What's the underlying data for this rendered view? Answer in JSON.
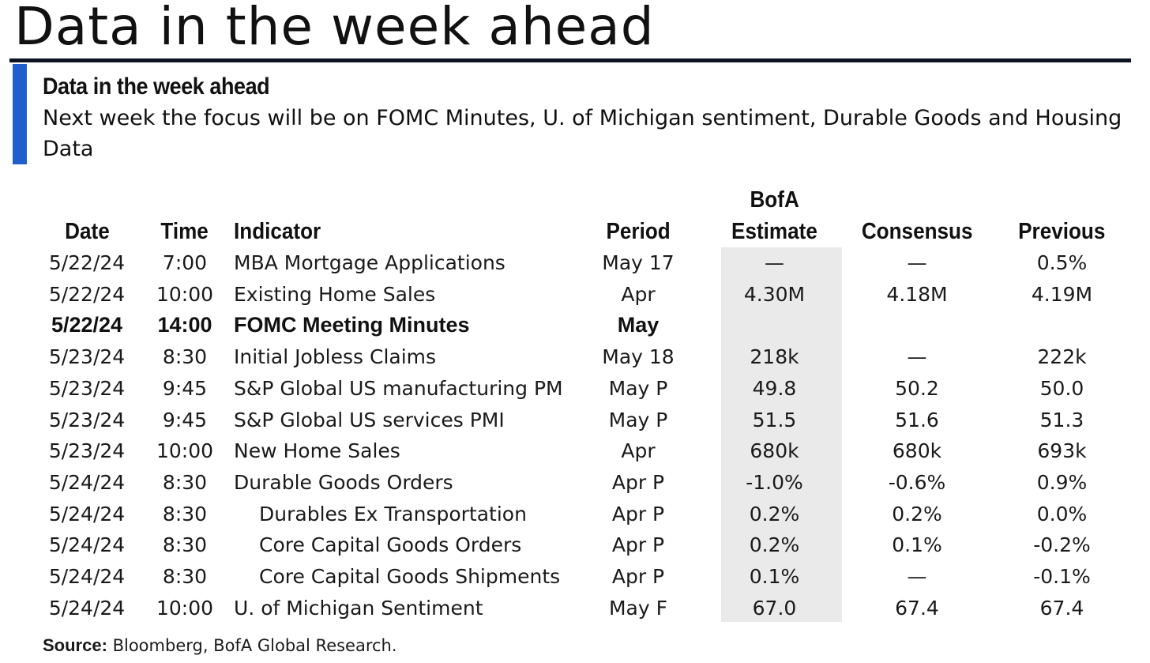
{
  "page": {
    "title": "Data in the week ahead"
  },
  "section": {
    "heading": "Data in the week ahead",
    "subtitle": "Next week the focus will be on FOMC Minutes, U. of Michigan sentiment, Durable Goods and Housing Data"
  },
  "table": {
    "headers": {
      "date": "Date",
      "time": "Time",
      "indicator": "Indicator",
      "period": "Period",
      "estimate_line1": "BofA",
      "estimate_line2": "Estimate",
      "consensus": "Consensus",
      "previous": "Previous"
    },
    "rows": [
      {
        "date": "5/22/24",
        "time": "7:00",
        "indicator": "MBA Mortgage Applications",
        "period": "May 17",
        "estimate": "—",
        "consensus": "—",
        "previous": "0.5%"
      },
      {
        "date": "5/22/24",
        "time": "10:00",
        "indicator": "Existing Home Sales",
        "period": "Apr",
        "estimate": "4.30M",
        "consensus": "4.18M",
        "previous": "4.19M"
      },
      {
        "date": "5/22/24",
        "time": "14:00",
        "indicator": "FOMC Meeting Minutes",
        "period": "May",
        "estimate": "",
        "consensus": "",
        "previous": ""
      },
      {
        "date": "5/23/24",
        "time": "8:30",
        "indicator": "Initial Jobless Claims",
        "period": "May 18",
        "estimate": "218k",
        "consensus": "—",
        "previous": "222k"
      },
      {
        "date": "5/23/24",
        "time": "9:45",
        "indicator": "S&P Global US manufacturing PMI",
        "period": "May P",
        "estimate": "49.8",
        "consensus": "50.2",
        "previous": "50.0"
      },
      {
        "date": "5/23/24",
        "time": "9:45",
        "indicator": "S&P Global US services PMI",
        "period": "May P",
        "estimate": "51.5",
        "consensus": "51.6",
        "previous": "51.3"
      },
      {
        "date": "5/23/24",
        "time": "10:00",
        "indicator": "New Home Sales",
        "period": "Apr",
        "estimate": "680k",
        "consensus": "680k",
        "previous": "693k"
      },
      {
        "date": "5/24/24",
        "time": "8:30",
        "indicator": "Durable Goods Orders",
        "period": "Apr P",
        "estimate": "-1.0%",
        "consensus": "-0.6%",
        "previous": "0.9%"
      },
      {
        "date": "5/24/24",
        "time": "8:30",
        "indicator": "Durables Ex Transportation",
        "period": "Apr P",
        "estimate": "0.2%",
        "consensus": "0.2%",
        "previous": "0.0%"
      },
      {
        "date": "5/24/24",
        "time": "8:30",
        "indicator": "Core Capital Goods Orders",
        "period": "Apr P",
        "estimate": "0.2%",
        "consensus": "0.1%",
        "previous": "-0.2%"
      },
      {
        "date": "5/24/24",
        "time": "8:30",
        "indicator": "Core Capital Goods Shipments",
        "period": "Apr P",
        "estimate": "0.1%",
        "consensus": "—",
        "previous": "-0.1%"
      },
      {
        "date": "5/24/24",
        "time": "10:00",
        "indicator": "U. of Michigan Sentiment",
        "period": "May F",
        "estimate": "67.0",
        "consensus": "67.4",
        "previous": "67.4"
      }
    ]
  },
  "source": {
    "label": "Source:",
    "text": " Bloomberg, BofA Global Research."
  },
  "colors": {
    "accent_bar": "#1f5fcc",
    "title_rule": "#0b1220",
    "estimate_shade": "#eaeaea"
  }
}
